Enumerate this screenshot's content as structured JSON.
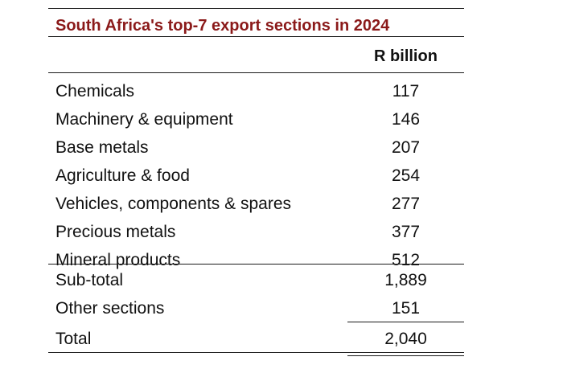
{
  "chart_data": {
    "type": "table",
    "title": "South Africa's top-7 export sections in 2024",
    "column_header": "R billion",
    "rows": [
      {
        "label": "Chemicals",
        "value": "117"
      },
      {
        "label": "Machinery & equipment",
        "value": "146"
      },
      {
        "label": "Base metals",
        "value": "207"
      },
      {
        "label": "Agriculture & food",
        "value": "254"
      },
      {
        "label": "Vehicles, components & spares",
        "value": "277"
      },
      {
        "label": "Precious metals",
        "value": "377"
      },
      {
        "label": "Mineral products",
        "value": "512"
      }
    ],
    "subtotal": {
      "label": "Sub-total",
      "value": "1,889"
    },
    "other": {
      "label": "Other sections",
      "value": "151"
    },
    "total": {
      "label": "Total",
      "value": "2,040"
    }
  },
  "colors": {
    "title": "#8b1a1a",
    "text": "#111111",
    "rules": "#1a1a1a"
  }
}
